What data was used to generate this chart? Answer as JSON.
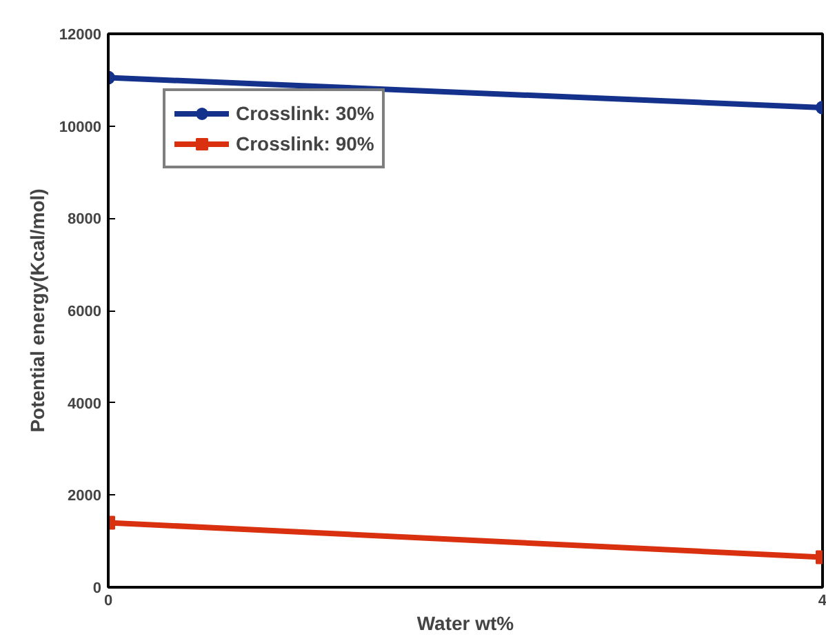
{
  "chart_data": {
    "type": "line",
    "xlabel": "Water wt%",
    "ylabel": "Potential energy(Kcal/mol)",
    "x": [
      0,
      4
    ],
    "xlim": [
      0,
      4
    ],
    "xticks": [
      0,
      4
    ],
    "ylim": [
      0,
      12000
    ],
    "yticks": [
      0,
      2000,
      4000,
      6000,
      8000,
      10000,
      12000
    ],
    "series": [
      {
        "name": "Crosslink: 30%",
        "color": "#14328c",
        "values": [
          11050,
          10400
        ],
        "marker": "circle"
      },
      {
        "name": "Crosslink: 90%",
        "color": "#d9300f",
        "values": [
          1400,
          650
        ],
        "marker": "square"
      }
    ],
    "grid": false,
    "legend": "top left",
    "line_style": "solid"
  }
}
